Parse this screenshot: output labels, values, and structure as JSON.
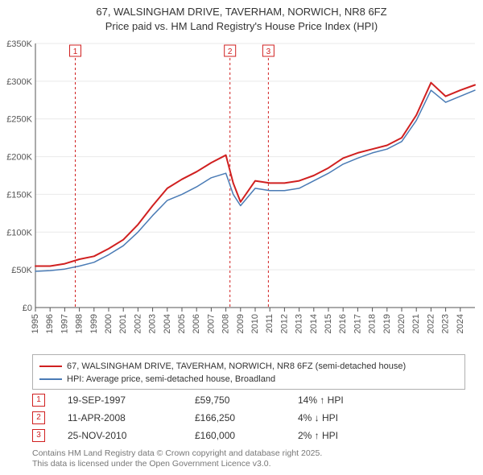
{
  "title_line1": "67, WALSINGHAM DRIVE, TAVERHAM, NORWICH, NR8 6FZ",
  "title_line2": "Price paid vs. HM Land Registry's House Price Index (HPI)",
  "chart": {
    "type": "line",
    "background_color": "#ffffff",
    "grid_color": "#e9e9e9",
    "axis_color": "#555555",
    "x": {
      "min": 1995,
      "max": 2025,
      "ticks": [
        1995,
        1996,
        1997,
        1998,
        1999,
        2000,
        2001,
        2002,
        2003,
        2004,
        2005,
        2006,
        2007,
        2008,
        2009,
        2010,
        2011,
        2012,
        2013,
        2014,
        2015,
        2016,
        2017,
        2018,
        2019,
        2020,
        2021,
        2022,
        2023,
        2024
      ],
      "tick_labels": [
        "1995",
        "1996",
        "1997",
        "1998",
        "1999",
        "2000",
        "2001",
        "2002",
        "2003",
        "2004",
        "2005",
        "2006",
        "2007",
        "2008",
        "2009",
        "2010",
        "2011",
        "2012",
        "2013",
        "2014",
        "2015",
        "2016",
        "2017",
        "2018",
        "2019",
        "2020",
        "2021",
        "2022",
        "2023",
        "2024"
      ],
      "tick_rotation": -90,
      "label_fontsize": 11
    },
    "y": {
      "min": 0,
      "max": 350000,
      "ticks": [
        0,
        50000,
        100000,
        150000,
        200000,
        250000,
        300000,
        350000
      ],
      "tick_labels": [
        "£0",
        "£50K",
        "£100K",
        "£150K",
        "£200K",
        "£250K",
        "£300K",
        "£350K"
      ],
      "label_fontsize": 11
    },
    "series": [
      {
        "id": "subject",
        "label": "67, WALSINGHAM DRIVE, TAVERHAM, NORWICH, NR8 6FZ (semi-detached house)",
        "color": "#d02020",
        "line_width": 2,
        "x": [
          1995,
          1996,
          1997,
          1998,
          1999,
          2000,
          2001,
          2002,
          2003,
          2004,
          2005,
          2006,
          2007,
          2008,
          2008.5,
          2009,
          2010,
          2011,
          2012,
          2013,
          2014,
          2015,
          2016,
          2017,
          2018,
          2019,
          2020,
          2021,
          2022,
          2023,
          2024,
          2025
        ],
        "y": [
          55000,
          55000,
          58000,
          64000,
          68000,
          78000,
          90000,
          110000,
          135000,
          158000,
          170000,
          180000,
          192000,
          202000,
          165000,
          140000,
          168000,
          165000,
          165000,
          168000,
          175000,
          185000,
          198000,
          205000,
          210000,
          215000,
          225000,
          255000,
          298000,
          280000,
          288000,
          295000
        ]
      },
      {
        "id": "hpi",
        "label": "HPI: Average price, semi-detached house, Broadland",
        "color": "#4a7bb5",
        "line_width": 1.5,
        "x": [
          1995,
          1996,
          1997,
          1998,
          1999,
          2000,
          2001,
          2002,
          2003,
          2004,
          2005,
          2006,
          2007,
          2008,
          2008.5,
          2009,
          2010,
          2011,
          2012,
          2013,
          2014,
          2015,
          2016,
          2017,
          2018,
          2019,
          2020,
          2021,
          2022,
          2023,
          2024,
          2025
        ],
        "y": [
          48000,
          49000,
          51000,
          55000,
          60000,
          70000,
          82000,
          100000,
          122000,
          142000,
          150000,
          160000,
          172000,
          178000,
          150000,
          135000,
          158000,
          155000,
          155000,
          158000,
          168000,
          178000,
          190000,
          198000,
          205000,
          210000,
          220000,
          248000,
          288000,
          272000,
          280000,
          288000
        ]
      }
    ],
    "markers": [
      {
        "n": "1",
        "x": 1997.72,
        "date": "19-SEP-1997",
        "price": "£59,750",
        "delta": "14% ↑ HPI"
      },
      {
        "n": "2",
        "x": 2008.28,
        "date": "11-APR-2008",
        "price": "£166,250",
        "delta": "4% ↓ HPI"
      },
      {
        "n": "3",
        "x": 2010.9,
        "date": "25-NOV-2010",
        "price": "£160,000",
        "delta": "2% ↑ HPI"
      }
    ],
    "marker_line_color": "#d02020",
    "marker_line_dash": "3,3",
    "marker_badge_border": "#d02020",
    "marker_badge_text": "#d02020"
  },
  "legend": {
    "border_color": "#b0b0b0",
    "items": [
      {
        "color": "#d02020",
        "label": "67, WALSINGHAM DRIVE, TAVERHAM, NORWICH, NR8 6FZ (semi-detached house)"
      },
      {
        "color": "#4a7bb5",
        "label": "HPI: Average price, semi-detached house, Broadland"
      }
    ]
  },
  "footer_line1": "Contains HM Land Registry data © Crown copyright and database right 2025.",
  "footer_line2": "This data is licensed under the Open Government Licence v3.0."
}
